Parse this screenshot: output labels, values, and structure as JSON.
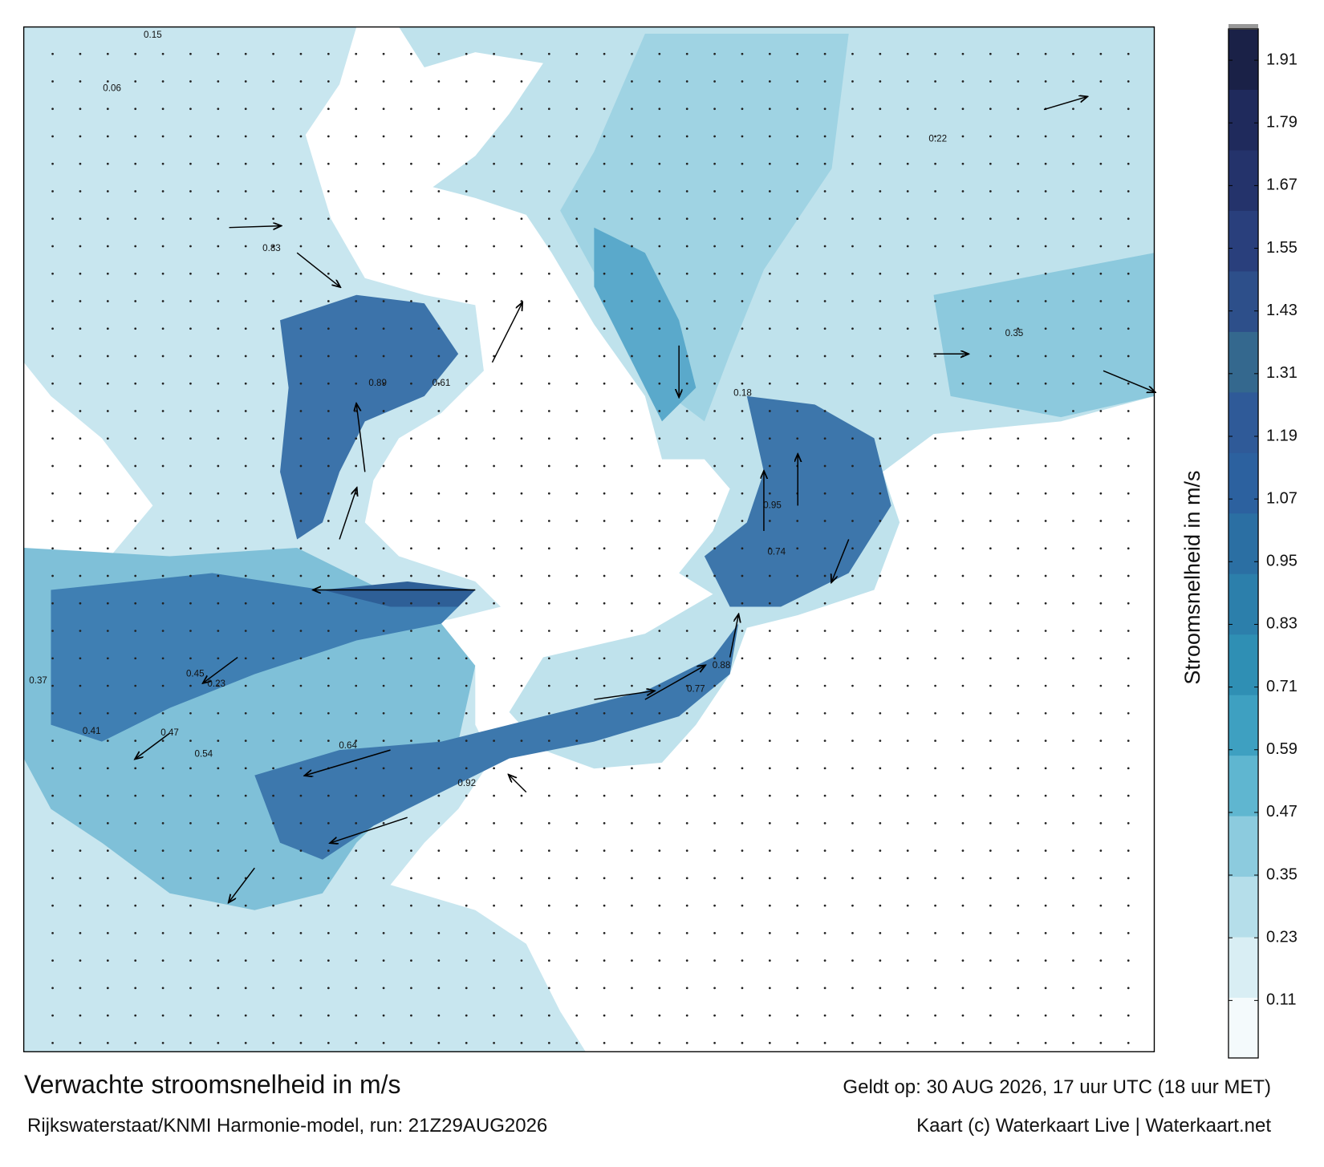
{
  "map": {
    "title": "Verwachte stroomsnelheid in m/s",
    "valid_time": "Geldt op: 30 AUG 2026, 17 uur UTC (18 uur MET)",
    "source": "Rijkswaterstaat/KNMI Harmonie-model, run: 21Z29AUG2026",
    "credit": "Kaart (c) Waterkaart Live | Waterkaart.net",
    "current_labels": [
      "0.83",
      "0.89",
      "0.95",
      "0.74",
      "0.61",
      "0.47",
      "0.45",
      "0.54",
      "0.64",
      "0.92",
      "0.77",
      "0.88",
      "0.41",
      "0.37",
      "0.23",
      "0.15",
      "0.22",
      "0.35",
      "0.18",
      "0.06"
    ],
    "colorbar": {
      "label": "Stroomsnelheid in m/s",
      "lim": [
        0,
        1.97
      ],
      "ticks": [
        0.11,
        0.23,
        0.35,
        0.47,
        0.59,
        0.71,
        0.83,
        0.95,
        1.07,
        1.19,
        1.31,
        1.43,
        1.55,
        1.67,
        1.79,
        1.91
      ],
      "colors": [
        "#f4fafc",
        "#d9eef4",
        "#b5deea",
        "#8ccbde",
        "#5fb6d0",
        "#3ea0c1",
        "#2f8fb4",
        "#2c7fab",
        "#2b6fa3",
        "#2c619f",
        "#2f5a98",
        "#34688e",
        "#2d4f8a",
        "#293f7c",
        "#24336b",
        "#1f2a5c",
        "#1a2147"
      ]
    }
  }
}
